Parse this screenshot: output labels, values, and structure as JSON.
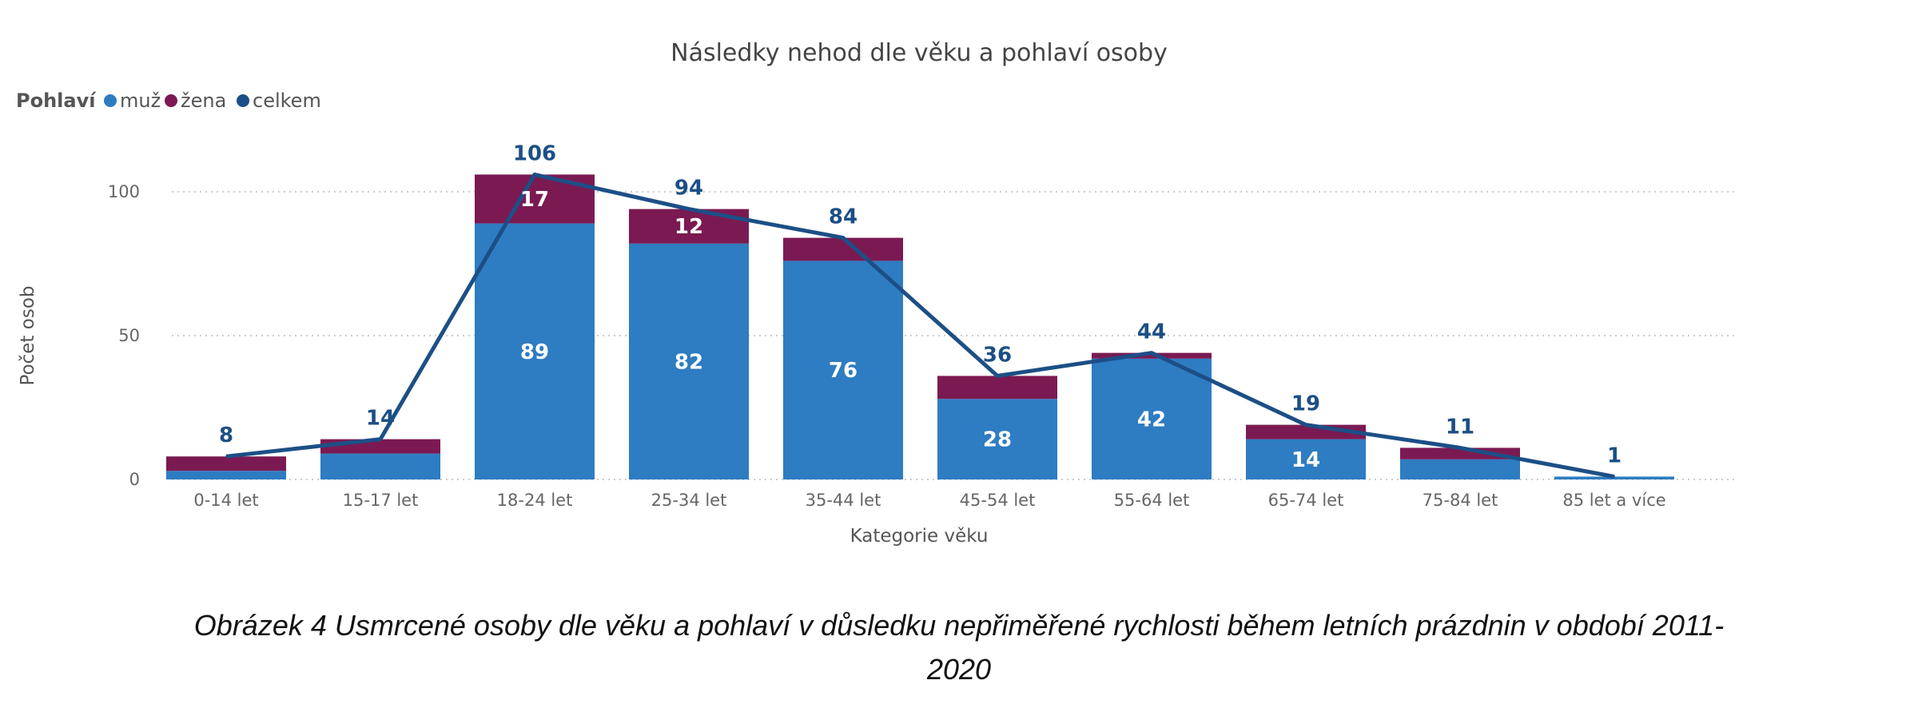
{
  "chart_data": {
    "type": "bar",
    "stacked": true,
    "title": "Následky nehod dle věku a pohlaví osoby",
    "legend": {
      "title": "Pohlaví",
      "placement": "top-left"
    },
    "xlabel": "Kategorie věku",
    "ylabel": "Počet osob",
    "ylim": [
      0,
      110
    ],
    "yticks": [
      0,
      50,
      100
    ],
    "grid": true,
    "categories": [
      "0-14 let",
      "15-17 let",
      "18-24 let",
      "25-34 let",
      "35-44 let",
      "45-54 let",
      "55-64 let",
      "65-74 let",
      "75-84 let",
      "85 let a více"
    ],
    "series": [
      {
        "name": "muž",
        "type": "bar",
        "color": "#2e7cc2",
        "values": [
          3,
          9,
          89,
          82,
          76,
          28,
          42,
          14,
          7,
          1
        ],
        "labels_shown": [
          false,
          false,
          true,
          true,
          true,
          true,
          true,
          true,
          false,
          false
        ]
      },
      {
        "name": "žena",
        "type": "bar",
        "color": "#7b1a52",
        "values": [
          5,
          5,
          17,
          12,
          8,
          8,
          2,
          5,
          4,
          0
        ],
        "labels_shown": [
          false,
          false,
          true,
          true,
          false,
          false,
          false,
          false,
          false,
          false
        ]
      },
      {
        "name": "celkem",
        "type": "line",
        "color": "#1c4f86",
        "values": [
          8,
          14,
          106,
          94,
          84,
          36,
          44,
          19,
          11,
          1
        ]
      }
    ]
  },
  "caption": {
    "line1": "Obrázek 4 Usmrcené osoby dle věku a pohlaví v důsledku nepřiměřené rychlosti během letních prázdnin v období 2011-",
    "line2": "2020"
  }
}
